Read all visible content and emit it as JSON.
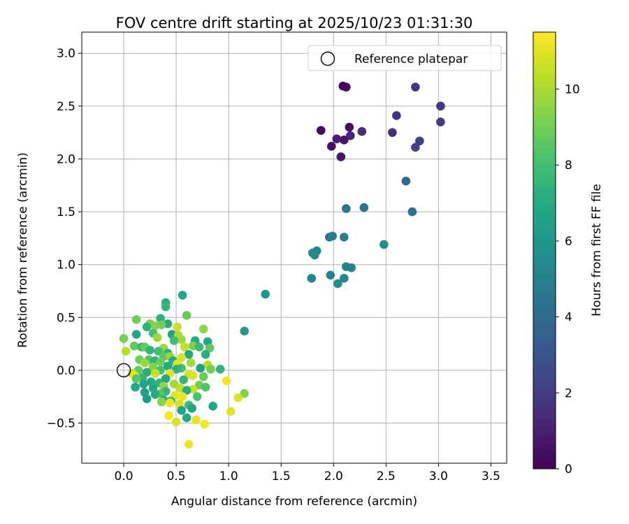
{
  "chart_data": {
    "type": "scatter",
    "title": "FOV centre drift starting at 2025/10/23 01:31:30",
    "xlabel": "Angular distance from reference (arcmin)",
    "ylabel": "Rotation from reference (arcmin)",
    "xlim": [
      -0.4,
      3.65
    ],
    "ylim": [
      -0.88,
      3.2
    ],
    "xticks": [
      0.0,
      0.5,
      1.0,
      1.5,
      2.0,
      2.5,
      3.0,
      3.5
    ],
    "xtick_labels": [
      "0.0",
      "0.5",
      "1.0",
      "1.5",
      "2.0",
      "2.5",
      "3.0",
      "3.5"
    ],
    "yticks": [
      -0.5,
      0.0,
      0.5,
      1.0,
      1.5,
      2.0,
      2.5,
      3.0
    ],
    "ytick_labels": [
      "−0.5",
      "0.0",
      "0.5",
      "1.0",
      "1.5",
      "2.0",
      "2.5",
      "3.0"
    ],
    "grid": true,
    "legend": {
      "placement": "top-right",
      "label": "Reference platepar"
    },
    "reference_point": {
      "x": 0.0,
      "y": 0.0
    },
    "colorbar": {
      "label": "Hours from first FF file",
      "min": 0,
      "max": 11.5,
      "ticks": [
        0,
        2,
        4,
        6,
        8,
        10
      ],
      "tick_labels": [
        "0",
        "2",
        "4",
        "6",
        "8",
        "10"
      ],
      "colormap": "viridis",
      "stops": [
        "#440154",
        "#482475",
        "#414487",
        "#355f8d",
        "#2a788e",
        "#21918c",
        "#22a884",
        "#44bf70",
        "#7ad151",
        "#bddf26",
        "#fde725"
      ]
    },
    "points": [
      {
        "x": 2.09,
        "y": 2.69,
        "h": 0.1
      },
      {
        "x": 2.12,
        "y": 2.68,
        "h": 0.2
      },
      {
        "x": 1.88,
        "y": 2.27,
        "h": 0.3
      },
      {
        "x": 2.15,
        "y": 2.3,
        "h": 0.4
      },
      {
        "x": 1.98,
        "y": 2.12,
        "h": 0.5
      },
      {
        "x": 2.1,
        "y": 2.18,
        "h": 0.6
      },
      {
        "x": 2.07,
        "y": 2.02,
        "h": 0.7
      },
      {
        "x": 2.03,
        "y": 2.19,
        "h": 1.0
      },
      {
        "x": 2.16,
        "y": 2.22,
        "h": 1.2
      },
      {
        "x": 2.27,
        "y": 2.26,
        "h": 1.4
      },
      {
        "x": 2.56,
        "y": 2.25,
        "h": 1.6
      },
      {
        "x": 2.6,
        "y": 2.41,
        "h": 1.7
      },
      {
        "x": 2.78,
        "y": 2.68,
        "h": 1.8
      },
      {
        "x": 3.02,
        "y": 2.5,
        "h": 1.9
      },
      {
        "x": 3.02,
        "y": 2.35,
        "h": 2.0
      },
      {
        "x": 2.82,
        "y": 2.17,
        "h": 2.1
      },
      {
        "x": 2.78,
        "y": 2.11,
        "h": 2.2
      },
      {
        "x": 2.69,
        "y": 1.79,
        "h": 4.0
      },
      {
        "x": 2.75,
        "y": 1.5,
        "h": 4.2
      },
      {
        "x": 2.29,
        "y": 1.54,
        "h": 4.4
      },
      {
        "x": 2.12,
        "y": 1.53,
        "h": 4.5
      },
      {
        "x": 1.96,
        "y": 1.26,
        "h": 4.6
      },
      {
        "x": 1.99,
        "y": 1.27,
        "h": 4.7
      },
      {
        "x": 2.1,
        "y": 1.26,
        "h": 4.8
      },
      {
        "x": 2.48,
        "y": 1.19,
        "h": 5.6
      },
      {
        "x": 1.8,
        "y": 1.11,
        "h": 5.2
      },
      {
        "x": 1.84,
        "y": 1.13,
        "h": 5.3
      },
      {
        "x": 1.82,
        "y": 1.09,
        "h": 5.4
      },
      {
        "x": 2.12,
        "y": 0.98,
        "h": 5.0
      },
      {
        "x": 2.17,
        "y": 0.97,
        "h": 5.1
      },
      {
        "x": 1.79,
        "y": 0.87,
        "h": 5.2
      },
      {
        "x": 1.97,
        "y": 0.9,
        "h": 5.0
      },
      {
        "x": 2.04,
        "y": 0.82,
        "h": 5.5
      },
      {
        "x": 2.1,
        "y": 0.87,
        "h": 5.3
      },
      {
        "x": 1.35,
        "y": 0.72,
        "h": 6.0
      },
      {
        "x": 1.15,
        "y": 0.37,
        "h": 6.2
      },
      {
        "x": 0.56,
        "y": 0.71,
        "h": 6.8
      },
      {
        "x": 0.4,
        "y": 0.64,
        "h": 7.2
      },
      {
        "x": 0.4,
        "y": 0.6,
        "h": 7.6
      },
      {
        "x": 0.6,
        "y": 0.52,
        "h": 8.8
      },
      {
        "x": 0.35,
        "y": 0.49,
        "h": 7.3
      },
      {
        "x": 0.12,
        "y": 0.48,
        "h": 9.0
      },
      {
        "x": 0.42,
        "y": 0.44,
        "h": 7.0
      },
      {
        "x": 0.25,
        "y": 0.44,
        "h": 9.2
      },
      {
        "x": 0.3,
        "y": 0.42,
        "h": 9.4
      },
      {
        "x": 0.22,
        "y": 0.41,
        "h": 7.4
      },
      {
        "x": 0.51,
        "y": 0.41,
        "h": 10.6
      },
      {
        "x": 0.76,
        "y": 0.39,
        "h": 9.5
      },
      {
        "x": 0.36,
        "y": 0.43,
        "h": 9.0
      },
      {
        "x": 0.12,
        "y": 0.34,
        "h": 6.8
      },
      {
        "x": 0.28,
        "y": 0.35,
        "h": 8.0
      },
      {
        "x": 0.46,
        "y": 0.34,
        "h": 6.5
      },
      {
        "x": 0.52,
        "y": 0.33,
        "h": 10.0
      },
      {
        "x": 0.0,
        "y": 0.3,
        "h": 9.1
      },
      {
        "x": 0.32,
        "y": 0.31,
        "h": 9.8
      },
      {
        "x": 0.55,
        "y": 0.29,
        "h": 9.9
      },
      {
        "x": 0.68,
        "y": 0.28,
        "h": 7.0
      },
      {
        "x": 0.8,
        "y": 0.27,
        "h": 6.8
      },
      {
        "x": 0.48,
        "y": 0.28,
        "h": 7.9
      },
      {
        "x": 0.1,
        "y": 0.23,
        "h": 8.7
      },
      {
        "x": 0.17,
        "y": 0.22,
        "h": 7.6
      },
      {
        "x": 0.2,
        "y": 0.22,
        "h": 8.8
      },
      {
        "x": 0.38,
        "y": 0.21,
        "h": 9.8
      },
      {
        "x": 0.58,
        "y": 0.22,
        "h": 10.4
      },
      {
        "x": 0.66,
        "y": 0.23,
        "h": 9.2
      },
      {
        "x": 0.72,
        "y": 0.22,
        "h": 7.8
      },
      {
        "x": 0.82,
        "y": 0.21,
        "h": 8.6
      },
      {
        "x": 0.02,
        "y": 0.18,
        "h": 10.2
      },
      {
        "x": 0.25,
        "y": 0.19,
        "h": 7.5
      },
      {
        "x": 0.33,
        "y": 0.18,
        "h": 7.9
      },
      {
        "x": 0.42,
        "y": 0.16,
        "h": 7.2
      },
      {
        "x": 0.62,
        "y": 0.15,
        "h": 6.9
      },
      {
        "x": 0.78,
        "y": 0.15,
        "h": 7.1
      },
      {
        "x": 0.38,
        "y": 0.13,
        "h": 8.5
      },
      {
        "x": 0.44,
        "y": 0.13,
        "h": 9.6
      },
      {
        "x": 0.55,
        "y": 0.12,
        "h": 10.8
      },
      {
        "x": 0.15,
        "y": 0.1,
        "h": 9.0
      },
      {
        "x": 0.24,
        "y": 0.1,
        "h": 8.2
      },
      {
        "x": 0.3,
        "y": 0.09,
        "h": 7.4
      },
      {
        "x": 0.35,
        "y": 0.08,
        "h": 8.9
      },
      {
        "x": 0.47,
        "y": 0.09,
        "h": 6.9
      },
      {
        "x": 0.64,
        "y": 0.07,
        "h": 9.9
      },
      {
        "x": 0.2,
        "y": 0.07,
        "h": 9.7
      },
      {
        "x": 0.51,
        "y": 0.06,
        "h": 11.0
      },
      {
        "x": 0.8,
        "y": 0.05,
        "h": 10.3
      },
      {
        "x": 0.42,
        "y": 0.04,
        "h": 7.0
      },
      {
        "x": 0.28,
        "y": 0.03,
        "h": 9.3
      },
      {
        "x": 0.55,
        "y": 0.02,
        "h": 8.0
      },
      {
        "x": 0.73,
        "y": 0.02,
        "h": 6.5
      },
      {
        "x": 0.92,
        "y": 0.01,
        "h": 7.4
      },
      {
        "x": 0.14,
        "y": 0.0,
        "h": 8.7
      },
      {
        "x": 0.35,
        "y": 0.0,
        "h": 8.1
      },
      {
        "x": 0.5,
        "y": 0.01,
        "h": 7.3
      },
      {
        "x": 0.83,
        "y": 0.01,
        "h": 9.0
      },
      {
        "x": 0.22,
        "y": -0.02,
        "h": 7.1
      },
      {
        "x": 0.3,
        "y": -0.03,
        "h": 10.5
      },
      {
        "x": 0.44,
        "y": -0.03,
        "h": 11.0
      },
      {
        "x": 0.08,
        "y": -0.03,
        "h": 10.4
      },
      {
        "x": 0.62,
        "y": -0.04,
        "h": 10.7
      },
      {
        "x": 0.66,
        "y": -0.05,
        "h": 10.9
      },
      {
        "x": 0.1,
        "y": -0.05,
        "h": 11.2
      },
      {
        "x": 0.76,
        "y": -0.06,
        "h": 8.8
      },
      {
        "x": 0.18,
        "y": -0.07,
        "h": 7.5
      },
      {
        "x": 0.4,
        "y": -0.08,
        "h": 6.8
      },
      {
        "x": 0.12,
        "y": -0.08,
        "h": 8.5
      },
      {
        "x": 0.57,
        "y": -0.09,
        "h": 7.6
      },
      {
        "x": 0.98,
        "y": -0.1,
        "h": 11.3
      },
      {
        "x": 0.26,
        "y": -0.11,
        "h": 7.0
      },
      {
        "x": 0.34,
        "y": -0.12,
        "h": 7.4
      },
      {
        "x": 0.48,
        "y": -0.13,
        "h": 9.9
      },
      {
        "x": 0.19,
        "y": -0.13,
        "h": 6.6
      },
      {
        "x": 0.72,
        "y": -0.14,
        "h": 9.0
      },
      {
        "x": 0.38,
        "y": -0.15,
        "h": 9.5
      },
      {
        "x": 0.78,
        "y": -0.16,
        "h": 8.3
      },
      {
        "x": 0.11,
        "y": -0.16,
        "h": 6.8
      },
      {
        "x": 0.28,
        "y": -0.17,
        "h": 6.9
      },
      {
        "x": 0.54,
        "y": -0.17,
        "h": 10.4
      },
      {
        "x": 0.66,
        "y": -0.18,
        "h": 10.6
      },
      {
        "x": 0.6,
        "y": -0.19,
        "h": 7.2
      },
      {
        "x": 0.4,
        "y": -0.2,
        "h": 7.5
      },
      {
        "x": 0.2,
        "y": -0.21,
        "h": 6.5
      },
      {
        "x": 0.35,
        "y": -0.22,
        "h": 8.4
      },
      {
        "x": 1.15,
        "y": -0.22,
        "h": 9.3
      },
      {
        "x": 0.3,
        "y": -0.23,
        "h": 7.1
      },
      {
        "x": 0.49,
        "y": -0.24,
        "h": 11.0
      },
      {
        "x": 0.56,
        "y": -0.25,
        "h": 11.2
      },
      {
        "x": 0.7,
        "y": -0.25,
        "h": 8.2
      },
      {
        "x": 1.09,
        "y": -0.26,
        "h": 10.9
      },
      {
        "x": 0.22,
        "y": -0.27,
        "h": 6.4
      },
      {
        "x": 0.38,
        "y": -0.28,
        "h": 7.3
      },
      {
        "x": 0.45,
        "y": -0.29,
        "h": 8.0
      },
      {
        "x": 0.36,
        "y": -0.3,
        "h": 9.4
      },
      {
        "x": 0.44,
        "y": -0.31,
        "h": 11.2
      },
      {
        "x": 0.53,
        "y": -0.32,
        "h": 10.8
      },
      {
        "x": 0.62,
        "y": -0.33,
        "h": 7.8
      },
      {
        "x": 0.85,
        "y": -0.34,
        "h": 6.9
      },
      {
        "x": 0.65,
        "y": -0.36,
        "h": 6.7
      },
      {
        "x": 0.55,
        "y": -0.38,
        "h": 6.6
      },
      {
        "x": 1.02,
        "y": -0.39,
        "h": 11.0
      },
      {
        "x": 0.43,
        "y": -0.43,
        "h": 11.3
      },
      {
        "x": 0.6,
        "y": -0.45,
        "h": 7.0
      },
      {
        "x": 0.69,
        "y": -0.47,
        "h": 11.1
      },
      {
        "x": 0.5,
        "y": -0.49,
        "h": 10.9
      },
      {
        "x": 0.77,
        "y": -0.51,
        "h": 11.4
      },
      {
        "x": 0.62,
        "y": -0.7,
        "h": 11.2
      }
    ]
  }
}
